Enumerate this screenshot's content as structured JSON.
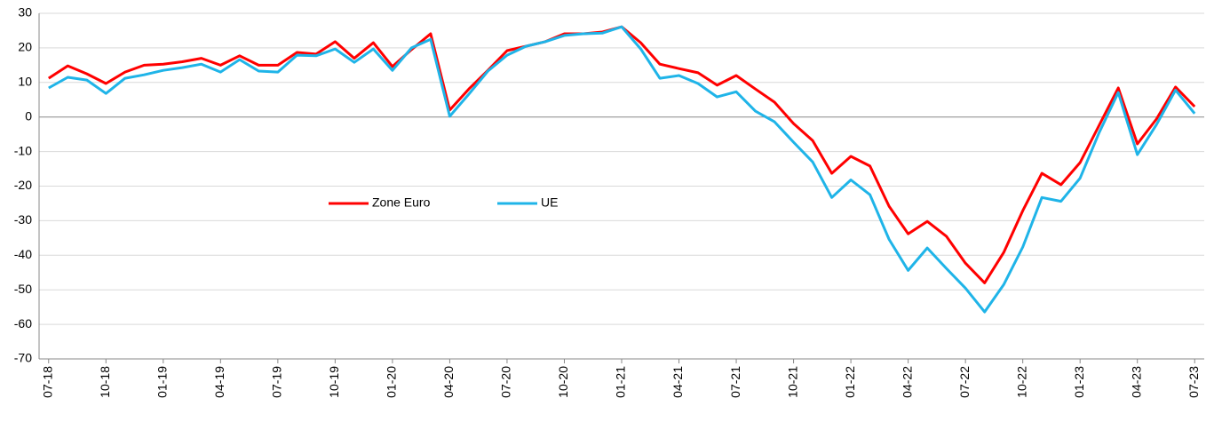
{
  "chart_data": {
    "type": "line",
    "categories": [
      "07-18",
      null,
      null,
      "10-18",
      null,
      null,
      "01-19",
      null,
      null,
      "04-19",
      null,
      null,
      "07-19",
      null,
      null,
      "10-19",
      null,
      null,
      "01-20",
      null,
      null,
      "04-20",
      null,
      null,
      "07-20",
      null,
      null,
      "10-20",
      null,
      null,
      "01-21",
      null,
      null,
      "04-21",
      null,
      null,
      "07-21",
      null,
      null,
      "10-21",
      null,
      null,
      "01-22",
      null,
      null,
      "04-22",
      null,
      null,
      "07-22",
      null,
      null,
      "10-22",
      null,
      null,
      "01-23",
      null,
      null,
      "04-23",
      null,
      null,
      "07-23"
    ],
    "series": [
      {
        "name": "Zone Euro",
        "color": "#ff0000",
        "values": [
          11.2,
          14.8,
          12.5,
          9.7,
          13,
          15,
          15.3,
          16,
          17,
          15,
          17.7,
          15,
          15,
          18.7,
          18.2,
          21.8,
          17,
          21.5,
          14.6,
          19.5,
          24.1,
          2,
          8.1,
          13.5,
          19.2,
          20.5,
          21.8,
          24.1,
          24.1,
          24.6,
          26.1,
          21.5,
          15.3,
          14,
          12.8,
          9.2,
          12,
          8.1,
          4.3,
          -1.9,
          -6.8,
          -16.3,
          -11.4,
          -14.2,
          -25.8,
          -33.8,
          -30.2,
          -34.5,
          -42.3,
          -48,
          -39.2,
          -27.1,
          -16.3,
          -19.6,
          -13.2,
          -2.4,
          8.4,
          -7.8,
          -0.6,
          8.7,
          3
        ]
      },
      {
        "name": "UE",
        "color": "#1fb4e8",
        "values": [
          8.4,
          11.5,
          10.7,
          6.8,
          11.2,
          12.2,
          13.5,
          14.3,
          15.3,
          13,
          16.6,
          13.3,
          13,
          17.9,
          17.7,
          19.7,
          15.8,
          19.7,
          13.5,
          20,
          22.5,
          0.2,
          6.6,
          13.3,
          17.9,
          20.5,
          21.8,
          23.6,
          24.1,
          24.3,
          26.1,
          19.7,
          11.2,
          12,
          9.7,
          5.8,
          7.3,
          1.7,
          -1.4,
          -7.3,
          -13,
          -23.3,
          -18.2,
          -22.5,
          -35.4,
          -44.4,
          -37.9,
          -43.8,
          -49.5,
          -56.4,
          -48.5,
          -37.6,
          -23.3,
          -24.4,
          -17.7,
          -4.5,
          7.1,
          -10.9,
          -2.2,
          7.8,
          1
        ]
      }
    ],
    "ylim": [
      -70,
      30
    ],
    "yticks": [
      -70,
      -60,
      -50,
      -40,
      -30,
      -20,
      -10,
      0,
      10,
      20,
      30
    ],
    "grid": true
  }
}
